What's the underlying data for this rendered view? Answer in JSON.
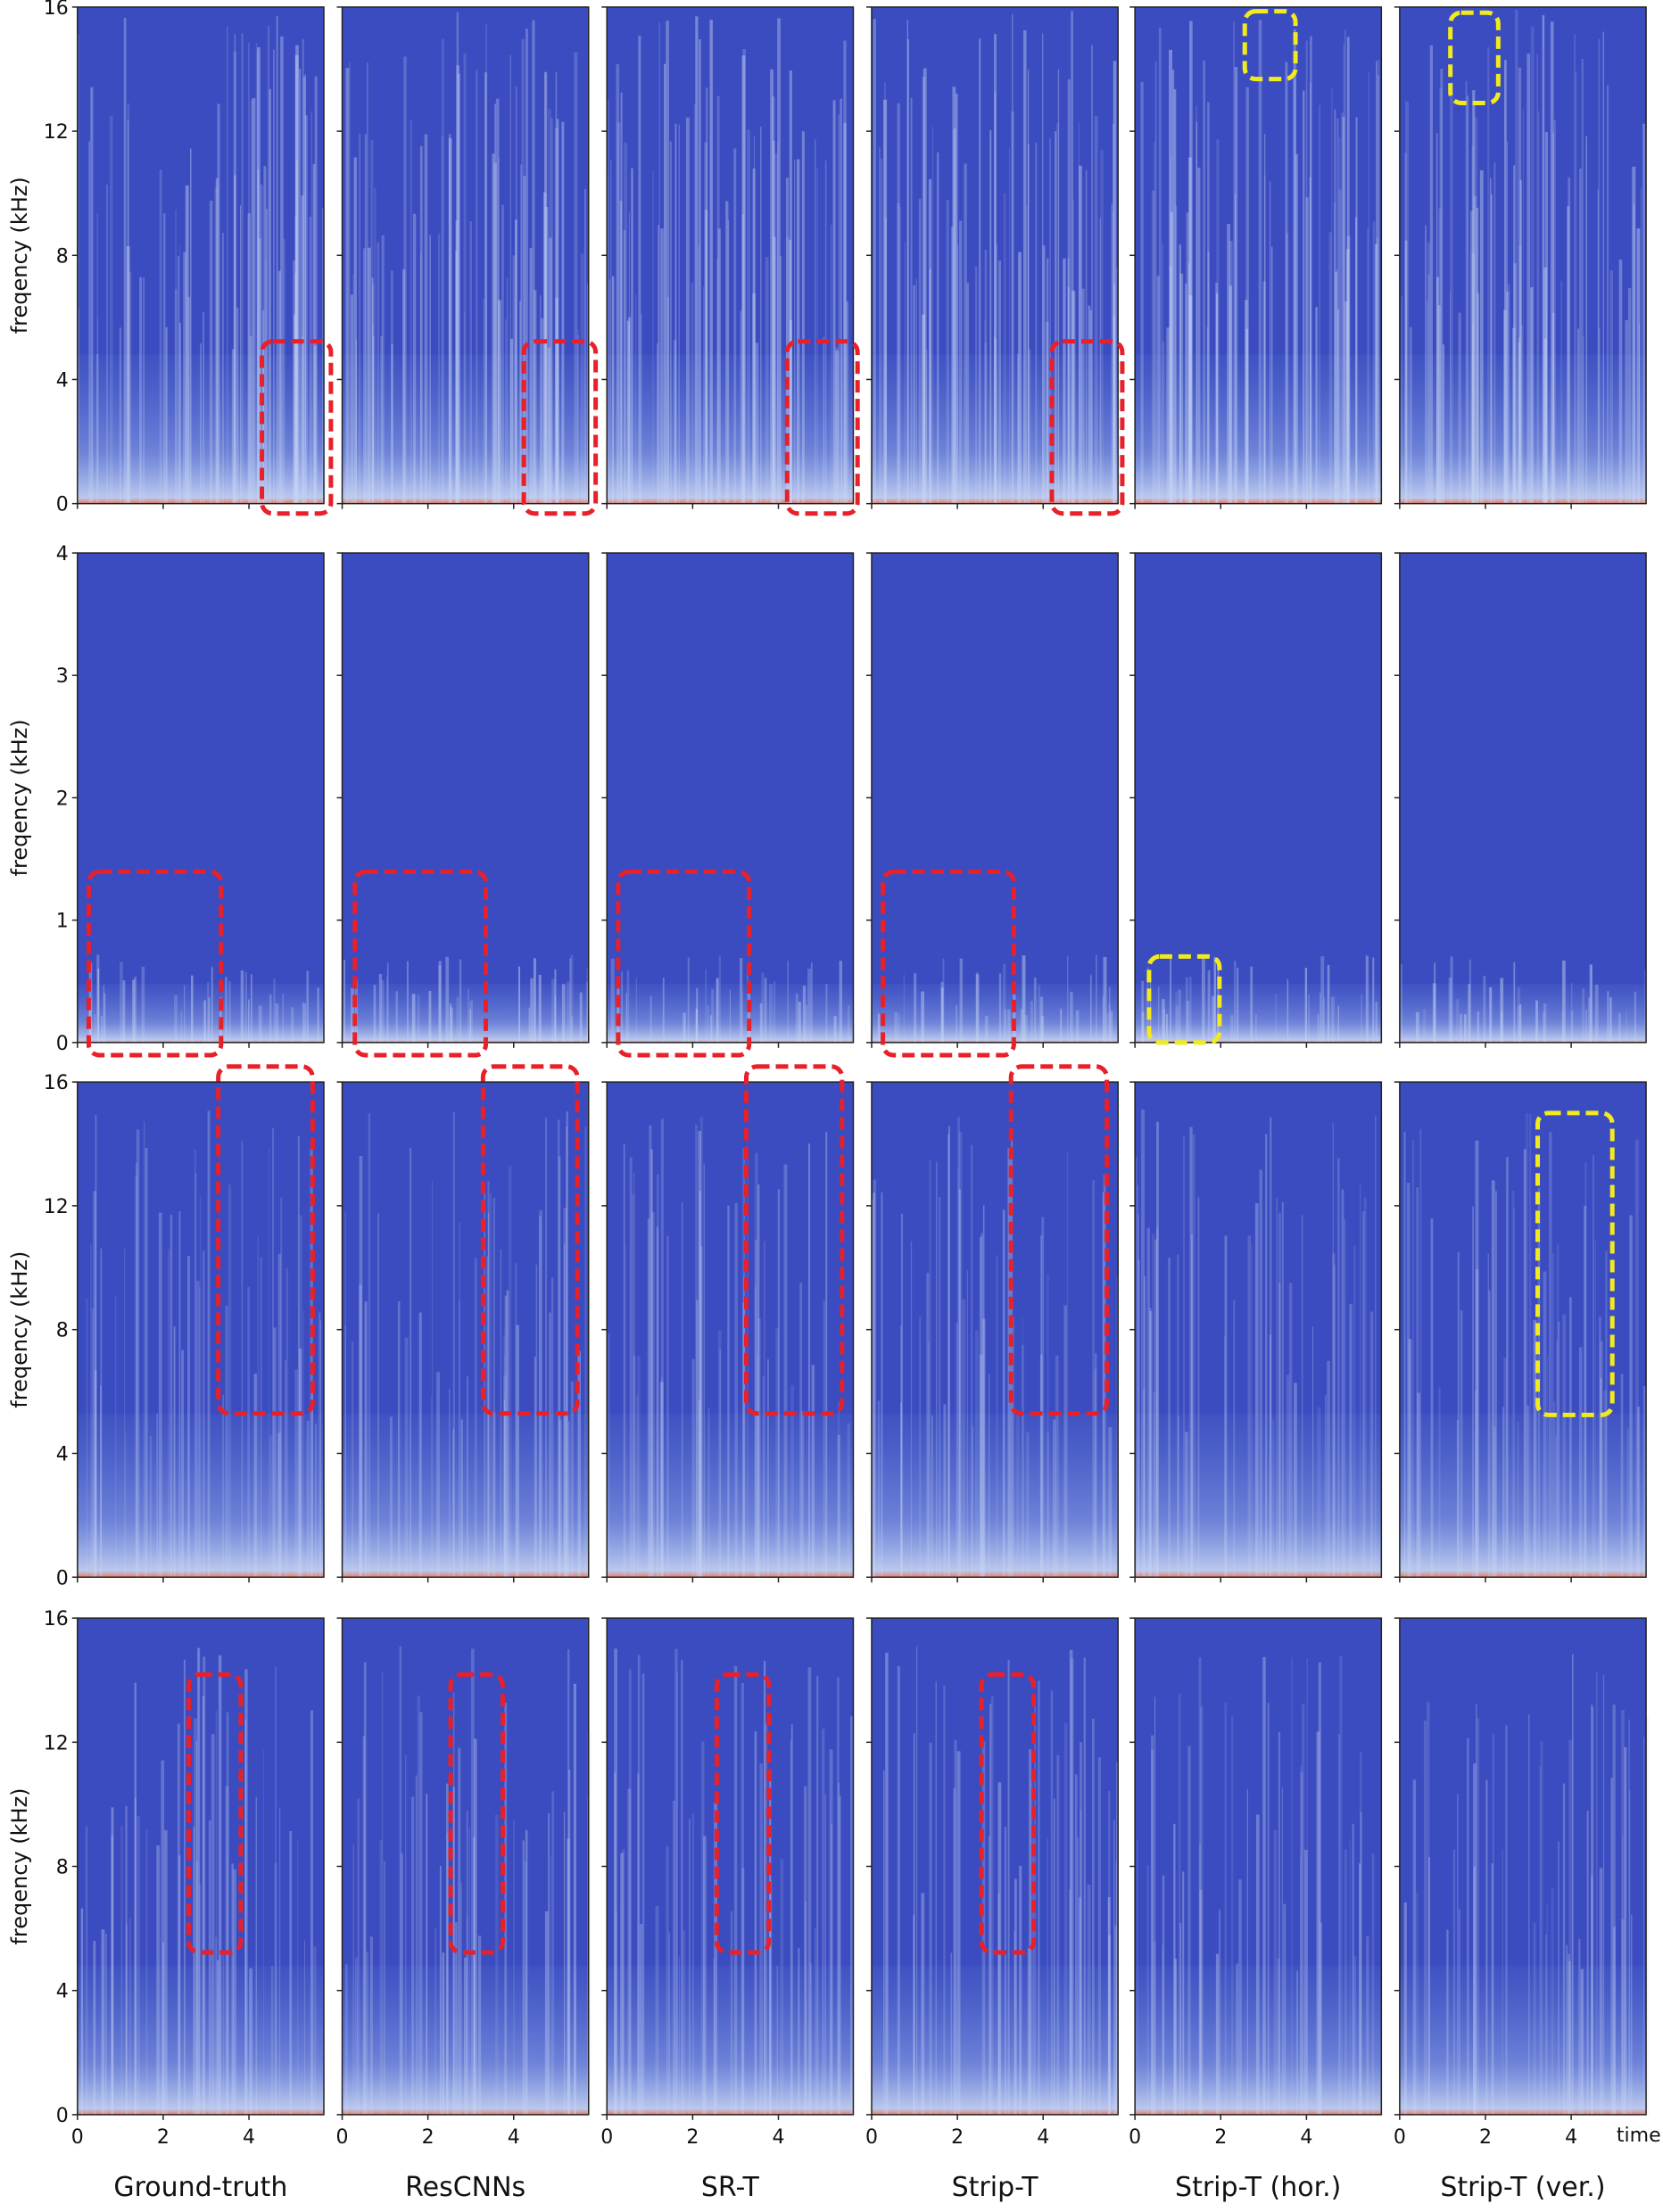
{
  "figure": {
    "y_label": "freqency (kHz)",
    "x_label": "time (s)",
    "columns": [
      "Ground-truth",
      "ResCNNs",
      "SR-T",
      "Strip-T",
      "Strip-T (hor.)",
      "Strip-T (ver.)"
    ],
    "rows": [
      {
        "yticks": [
          "0",
          "4",
          "8",
          "12",
          "16"
        ]
      },
      {
        "yticks": [
          "0",
          "1",
          "2",
          "3",
          "4"
        ]
      },
      {
        "yticks": [
          "0",
          "4",
          "8",
          "12",
          "16"
        ]
      },
      {
        "yticks": [
          "0",
          "4",
          "8",
          "12",
          "16"
        ]
      }
    ],
    "xticks": [
      "0",
      "2",
      "4"
    ]
  }
}
